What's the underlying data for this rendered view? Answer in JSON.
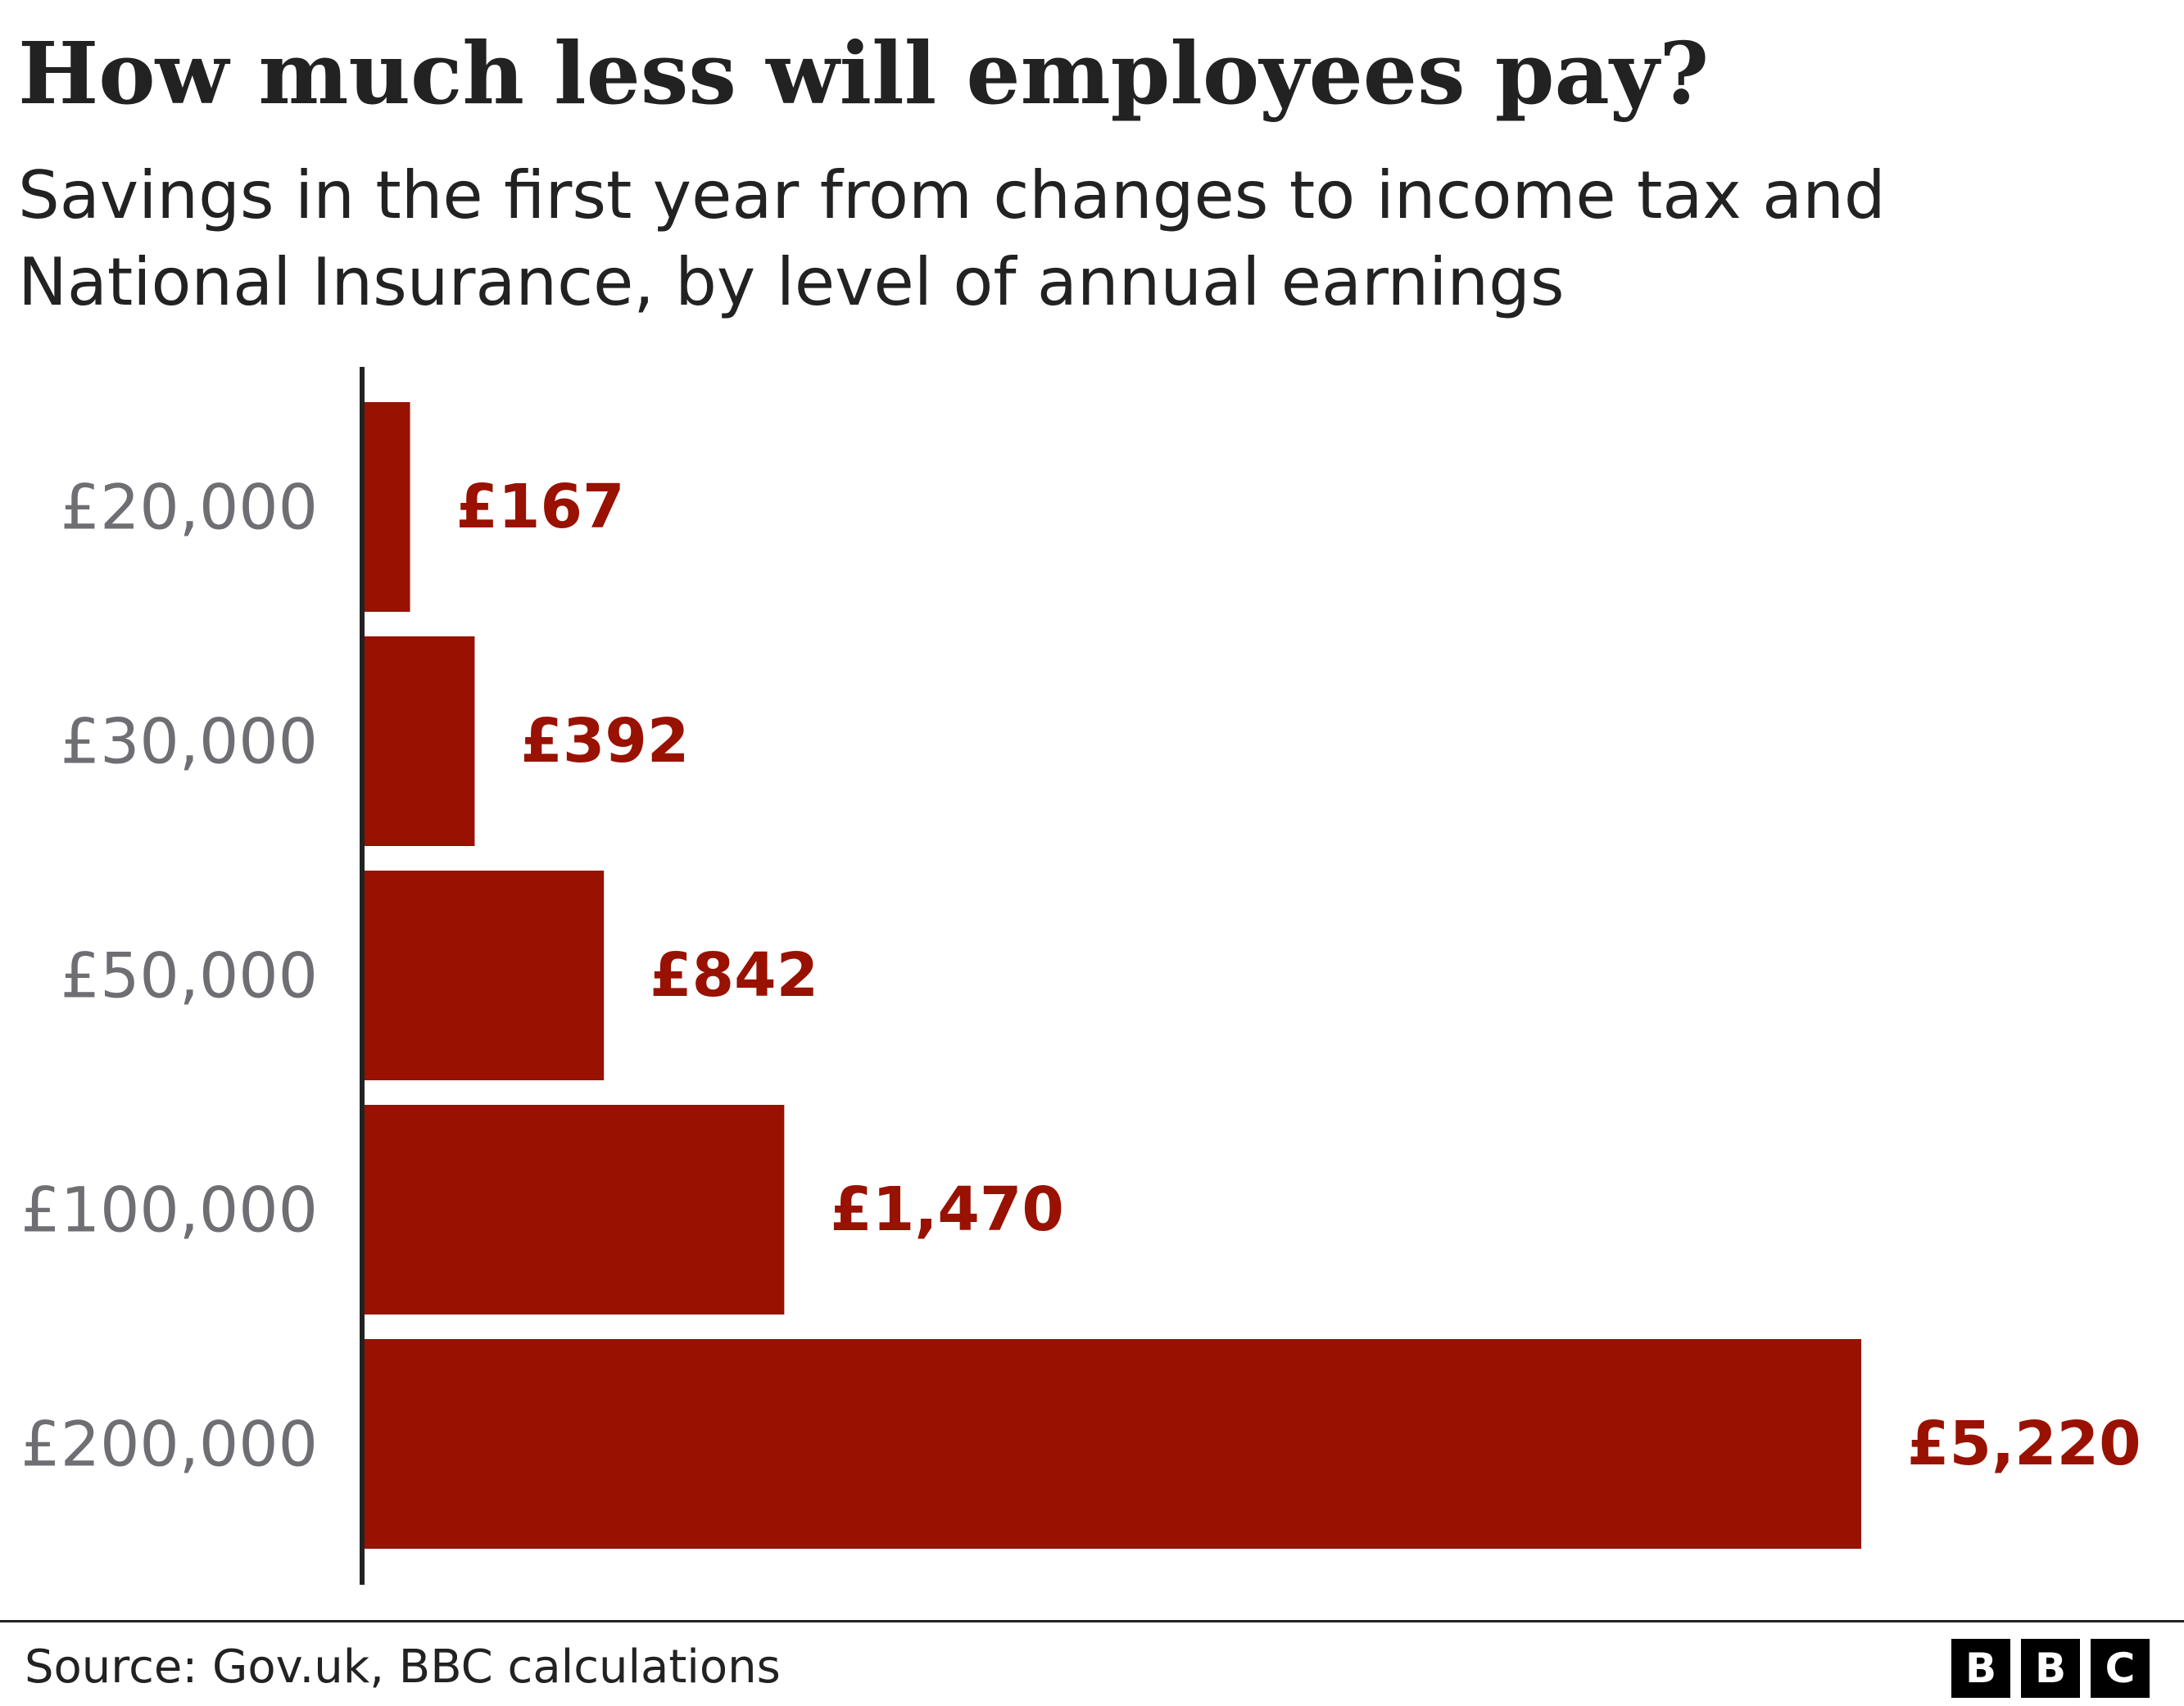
{
  "title": "How much less will employees pay?",
  "subtitle": "Savings in the first year from changes to income tax and National Insurance, by level of annual earnings",
  "source": "Source: Gov.uk, BBC calculations",
  "logo": [
    "B",
    "B",
    "C"
  ],
  "colors": {
    "bar": "#991100",
    "value_label": "#991100",
    "category_label": "#6e6e73",
    "axis": "#222222"
  },
  "chart_data": {
    "type": "bar",
    "orientation": "horizontal",
    "categories": [
      "£20,000",
      "£30,000",
      "£50,000",
      "£100,000",
      "£200,000"
    ],
    "values": [
      167,
      392,
      842,
      1470,
      5220
    ],
    "value_labels": [
      "£167",
      "£392",
      "£842",
      "£1,470",
      "£5,220"
    ],
    "title": "How much less will employees pay?",
    "xlabel": "",
    "ylabel": "",
    "xlim": [
      0,
      5220
    ],
    "grid": false,
    "legend": "none"
  }
}
